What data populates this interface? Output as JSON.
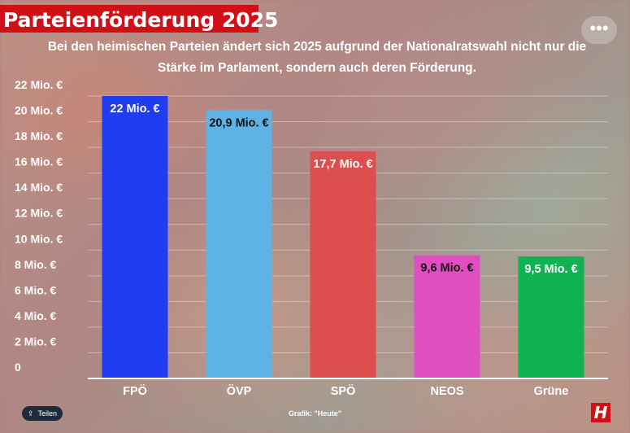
{
  "header": {
    "title": "Parteienförderung 2025",
    "subtitle": "Bei den heimischen Parteien ändert sich 2025 aufgrund der Nationalratswahl nicht nur die Stärke im Parlament, sondern auch deren Förderung."
  },
  "toolbar": {
    "more_label": "•••"
  },
  "footer": {
    "share_label": "Teilen",
    "share_icon": "share-icon",
    "credit": "Grafik: \"Heute\"",
    "logo": "H"
  },
  "colors": {
    "brand_red": "#d10f16",
    "text": "#ffffff"
  },
  "chart_data": {
    "type": "bar",
    "title": "Parteienförderung 2025",
    "categories": [
      "FPÖ",
      "ÖVP",
      "SPÖ",
      "NEOS",
      "Grüne"
    ],
    "values": [
      22,
      20.9,
      17.7,
      9.6,
      9.5
    ],
    "data_labels": [
      "22 Mio. €",
      "20,9 Mio. €",
      "17,7 Mio. €",
      "9,6 Mio. €",
      "9,5 Mio. €"
    ],
    "bar_colors": [
      "#1f3cf0",
      "#5fb2e4",
      "#dd4f4f",
      "#df4fc0",
      "#10b252"
    ],
    "label_colors": [
      "#ffffff",
      "#111111",
      "#ffffff",
      "#111111",
      "#ffffff"
    ],
    "ylim": [
      0,
      22
    ],
    "yticks": [
      0,
      2,
      4,
      6,
      8,
      10,
      12,
      14,
      16,
      18,
      20,
      22
    ],
    "ytick_labels": [
      "0",
      "2 Mio. €",
      "4 Mio. €",
      "6 Mio. €",
      "8 Mio. €",
      "10 Mio. €",
      "12 Mio. €",
      "14 Mio. €",
      "16 Mio. €",
      "18 Mio. €",
      "20 Mio. €",
      "22 Mio. €"
    ],
    "xlabel": "",
    "ylabel": "",
    "grid": true
  }
}
